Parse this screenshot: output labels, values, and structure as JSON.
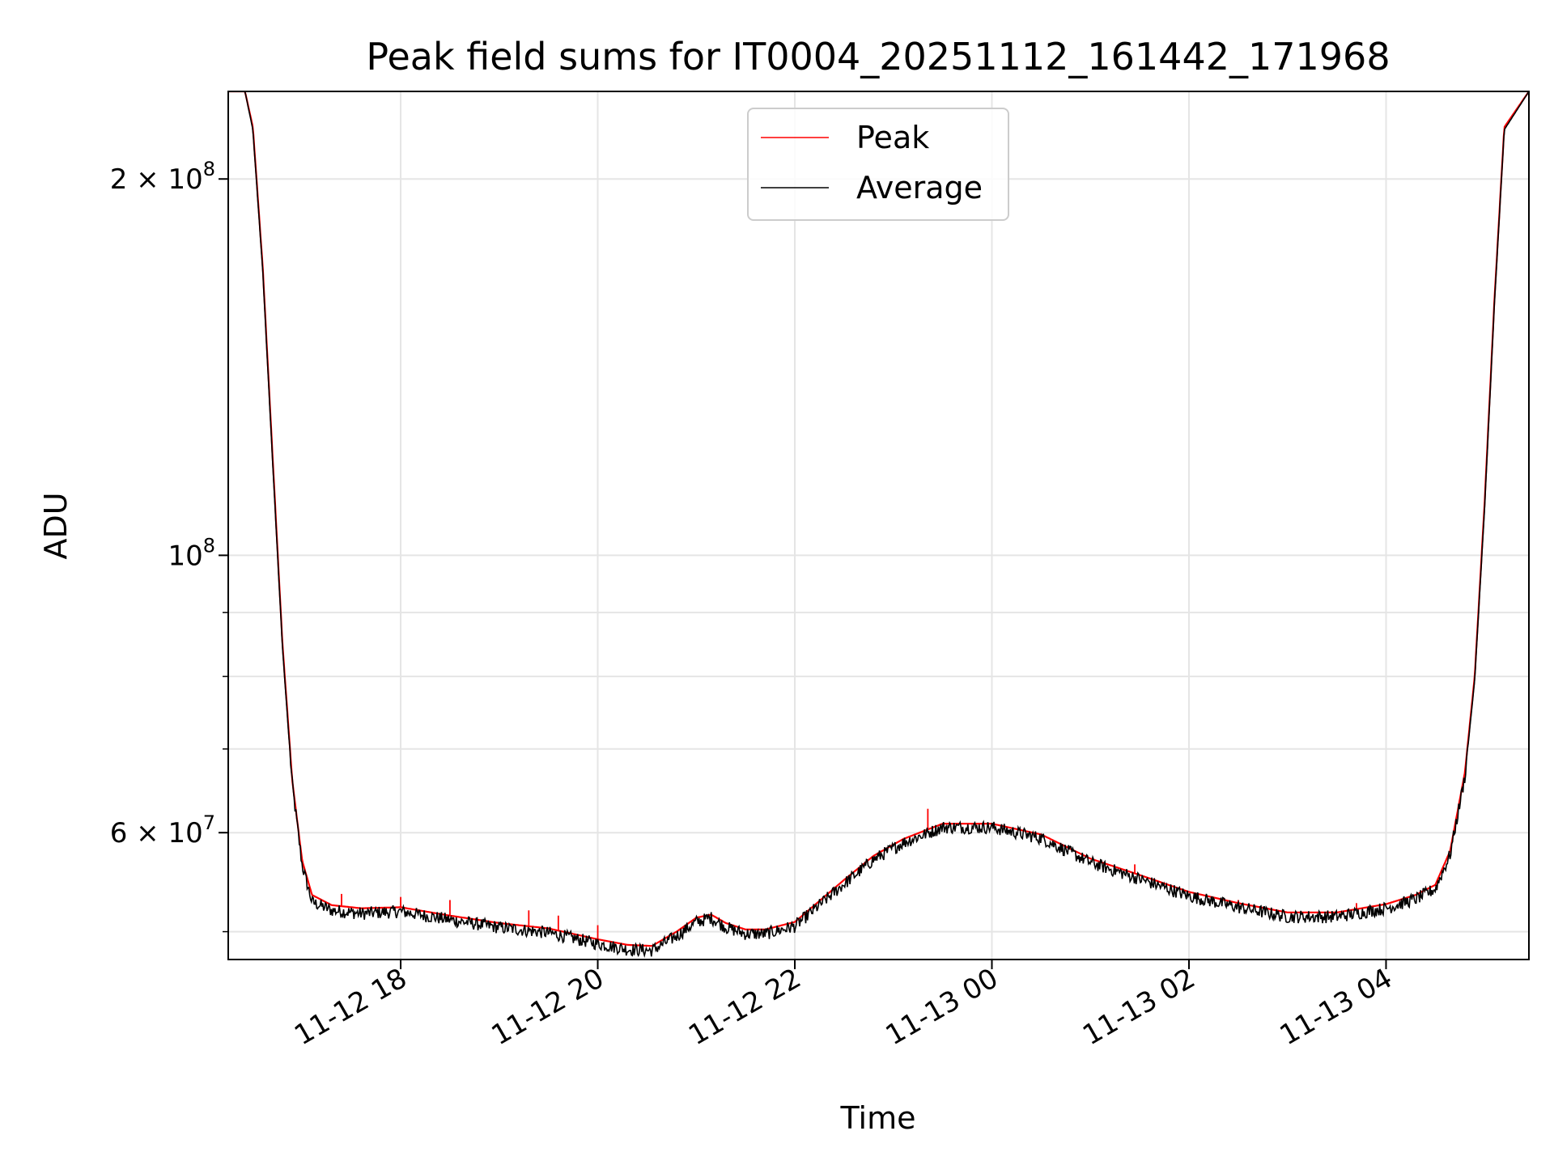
{
  "chart_data": {
    "type": "line",
    "title": "Peak field sums for IT0004_20251112_161442_171968",
    "xlabel": "Time",
    "ylabel": "ADU",
    "yscale": "log",
    "xlim_hours": [
      16.25,
      29.45
    ],
    "ylim": [
      47500000,
      235000000
    ],
    "grid": true,
    "legend_position": "upper center",
    "x_ticks": [
      {
        "hours": 18,
        "label": "11-12 18"
      },
      {
        "hours": 20,
        "label": "11-12 20"
      },
      {
        "hours": 22,
        "label": "11-12 22"
      },
      {
        "hours": 24,
        "label": "11-13 00"
      },
      {
        "hours": 26,
        "label": "11-13 02"
      },
      {
        "hours": 28,
        "label": "11-13 04"
      }
    ],
    "y_major_ticks": [
      {
        "value": 60000000,
        "mantissa": "6",
        "exponent": "7",
        "label": "6 × 10^7"
      },
      {
        "value": 100000000,
        "mantissa": "",
        "exponent": "8",
        "label": "10^8"
      },
      {
        "value": 200000000,
        "mantissa": "2",
        "exponent": "8",
        "label": "2 × 10^8"
      }
    ],
    "y_minor_ticks": [
      50000000,
      70000000,
      80000000,
      90000000
    ],
    "series": [
      {
        "name": "Peak",
        "color": "#ff0000",
        "x_hours": [
          16.25,
          16.42,
          16.5,
          16.6,
          16.7,
          16.8,
          16.9,
          17.0,
          17.1,
          17.3,
          17.6,
          18.0,
          18.5,
          19.0,
          19.5,
          20.0,
          20.3,
          20.55,
          20.8,
          21.0,
          21.15,
          21.3,
          21.5,
          21.7,
          22.0,
          22.2,
          22.5,
          22.8,
          23.1,
          23.5,
          24.0,
          24.5,
          25.0,
          25.5,
          26.0,
          26.5,
          27.0,
          27.5,
          28.0,
          28.3,
          28.5,
          28.65,
          28.8,
          28.9,
          29.0,
          29.1,
          29.2,
          29.45
        ],
        "y": [
          235000000,
          235000000,
          220000000,
          170000000,
          120000000,
          85000000,
          66000000,
          57000000,
          53500000,
          52500000,
          52200000,
          52300000,
          51500000,
          50800000,
          50300000,
          49300000,
          48800000,
          48700000,
          50000000,
          51300000,
          51600000,
          50800000,
          50200000,
          50200000,
          50900000,
          52500000,
          55000000,
          57500000,
          59300000,
          61000000,
          61000000,
          59800000,
          57200000,
          55500000,
          53800000,
          52700000,
          51800000,
          51800000,
          52600000,
          53500000,
          54500000,
          58000000,
          67000000,
          80000000,
          110000000,
          160000000,
          220000000,
          235000000
        ],
        "spikes": [
          {
            "x_hours": 17.4,
            "y": 53600000
          },
          {
            "x_hours": 18.0,
            "y": 53300000
          },
          {
            "x_hours": 18.5,
            "y": 53000000
          },
          {
            "x_hours": 19.3,
            "y": 52000000
          },
          {
            "x_hours": 19.6,
            "y": 51500000
          },
          {
            "x_hours": 20.0,
            "y": 50600000
          },
          {
            "x_hours": 23.35,
            "y": 62700000
          },
          {
            "x_hours": 25.45,
            "y": 56600000
          },
          {
            "x_hours": 26.5,
            "y": 53000000
          },
          {
            "x_hours": 27.7,
            "y": 52700000
          }
        ]
      },
      {
        "name": "Average",
        "color": "#000000",
        "x_hours": [
          16.25,
          16.42,
          16.5,
          16.6,
          16.7,
          16.8,
          16.9,
          17.0,
          17.1,
          17.3,
          17.6,
          18.0,
          18.5,
          19.0,
          19.5,
          20.0,
          20.3,
          20.55,
          20.8,
          21.0,
          21.15,
          21.3,
          21.5,
          21.7,
          22.0,
          22.2,
          22.5,
          22.8,
          23.1,
          23.5,
          24.0,
          24.5,
          25.0,
          25.5,
          26.0,
          26.5,
          27.0,
          27.5,
          28.0,
          28.3,
          28.5,
          28.65,
          28.8,
          28.9,
          29.0,
          29.1,
          29.2,
          29.45
        ],
        "y": [
          235000000,
          235000000,
          219000000,
          169000000,
          119000000,
          84500000,
          65500000,
          56500000,
          52800000,
          52000000,
          51700000,
          51900000,
          51100000,
          50400000,
          49900000,
          48900000,
          48400000,
          48300000,
          49600000,
          50900000,
          51300000,
          50400000,
          49800000,
          49800000,
          50500000,
          52100000,
          54600000,
          57100000,
          58900000,
          60600000,
          60600000,
          59400000,
          56800000,
          55100000,
          53400000,
          52300000,
          51400000,
          51400000,
          52200000,
          53100000,
          54100000,
          57600000,
          66500000,
          79500000,
          109000000,
          159000000,
          219000000,
          235000000
        ],
        "noise_fraction": 0.012
      }
    ]
  }
}
